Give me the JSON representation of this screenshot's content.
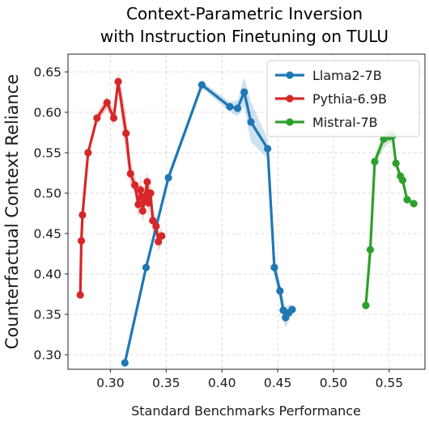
{
  "chart_data": {
    "type": "line",
    "title_lines": [
      "Context-Parametric Inversion",
      "with Instruction Finetuning on TULU"
    ],
    "xlabel": "Standard Benchmarks Performance",
    "ylabel": "Counterfactual Context Reliance",
    "xlim": [
      0.262,
      0.582
    ],
    "ylim": [
      0.282,
      0.672
    ],
    "xticks": [
      0.3,
      0.35,
      0.4,
      0.45,
      0.5,
      0.55
    ],
    "xtick_labels": [
      "0.30",
      "0.35",
      "0.40",
      "0.45",
      "0.50",
      "0.55"
    ],
    "yticks": [
      0.3,
      0.35,
      0.4,
      0.45,
      0.5,
      0.55,
      0.6,
      0.65
    ],
    "ytick_labels": [
      "0.30",
      "0.35",
      "0.40",
      "0.45",
      "0.50",
      "0.55",
      "0.60",
      "0.65"
    ],
    "grid": true,
    "legend_position": "top-right",
    "series": [
      {
        "name": "Llama2-7B",
        "color": "#1f77b4",
        "points": [
          [
            0.313,
            0.29
          ],
          [
            0.332,
            0.408
          ],
          [
            0.352,
            0.519
          ],
          [
            0.382,
            0.634
          ],
          [
            0.407,
            0.607
          ],
          [
            0.414,
            0.605
          ],
          [
            0.42,
            0.625
          ],
          [
            0.426,
            0.588
          ],
          [
            0.441,
            0.555
          ],
          [
            0.447,
            0.408
          ],
          [
            0.452,
            0.379
          ],
          [
            0.455,
            0.355
          ],
          [
            0.457,
            0.346
          ],
          [
            0.46,
            0.352
          ],
          [
            0.463,
            0.356
          ]
        ],
        "band": [
          0.005,
          0.005,
          0.006,
          0.004,
          0.006,
          0.01,
          0.018,
          0.025,
          0.012,
          0.01,
          0.012,
          0.014,
          0.012,
          0.01,
          0.006
        ]
      },
      {
        "name": "Pythia-6.9B",
        "color": "#d62728",
        "points": [
          [
            0.273,
            0.374
          ],
          [
            0.274,
            0.441
          ],
          [
            0.275,
            0.473
          ],
          [
            0.28,
            0.55
          ],
          [
            0.288,
            0.593
          ],
          [
            0.297,
            0.612
          ],
          [
            0.303,
            0.593
          ],
          [
            0.307,
            0.638
          ],
          [
            0.314,
            0.574
          ],
          [
            0.318,
            0.524
          ],
          [
            0.322,
            0.51
          ],
          [
            0.325,
            0.486
          ],
          [
            0.327,
            0.504
          ],
          [
            0.329,
            0.478
          ],
          [
            0.331,
            0.496
          ],
          [
            0.333,
            0.514
          ],
          [
            0.334,
            0.488
          ],
          [
            0.336,
            0.5
          ],
          [
            0.338,
            0.466
          ],
          [
            0.341,
            0.459
          ],
          [
            0.343,
            0.44
          ],
          [
            0.346,
            0.447
          ]
        ],
        "band": [
          0.004,
          0.006,
          0.006,
          0.006,
          0.006,
          0.008,
          0.01,
          0.012,
          0.025,
          0.015,
          0.012,
          0.016,
          0.018,
          0.014,
          0.016,
          0.012,
          0.018,
          0.016,
          0.015,
          0.012,
          0.012,
          0.01
        ]
      },
      {
        "name": "Mistral-7B",
        "color": "#2ca02c",
        "points": [
          [
            0.529,
            0.361
          ],
          [
            0.533,
            0.43
          ],
          [
            0.537,
            0.539
          ],
          [
            0.545,
            0.567
          ],
          [
            0.55,
            0.57
          ],
          [
            0.553,
            0.571
          ],
          [
            0.556,
            0.537
          ],
          [
            0.56,
            0.521
          ],
          [
            0.562,
            0.516
          ],
          [
            0.566,
            0.492
          ],
          [
            0.572,
            0.487
          ]
        ],
        "band": [
          0.004,
          0.004,
          0.006,
          0.012,
          0.008,
          0.008,
          0.008,
          0.006,
          0.006,
          0.005,
          0.004
        ]
      }
    ]
  }
}
